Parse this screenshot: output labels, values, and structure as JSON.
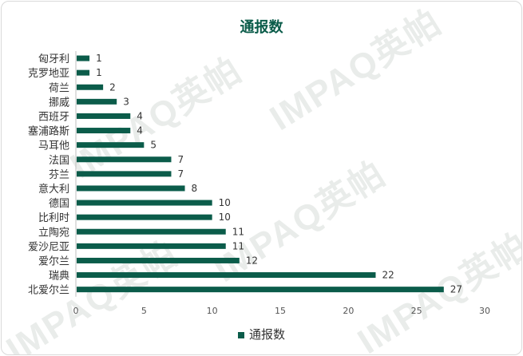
{
  "chart_data": {
    "type": "bar",
    "orientation": "horizontal",
    "title": "通报数",
    "categories": [
      "匈牙利",
      "克罗地亚",
      "荷兰",
      "挪威",
      "西班牙",
      "塞浦路斯",
      "马耳他",
      "法国",
      "芬兰",
      "意大利",
      "德国",
      "比利时",
      "立陶宛",
      "爱沙尼亚",
      "爱尔兰",
      "瑞典",
      "北爱尔兰"
    ],
    "series": [
      {
        "name": "通报数",
        "values": [
          1,
          1,
          2,
          3,
          4,
          4,
          5,
          7,
          7,
          8,
          10,
          10,
          11,
          11,
          12,
          22,
          27
        ],
        "color": "#0b5c4a"
      }
    ],
    "xlim": [
      0,
      30
    ],
    "xticks": [
      "0",
      "5",
      "10",
      "15",
      "20",
      "25",
      "30"
    ],
    "grid": false,
    "legend": "bottom"
  },
  "watermark": "IMPAQ英帕"
}
